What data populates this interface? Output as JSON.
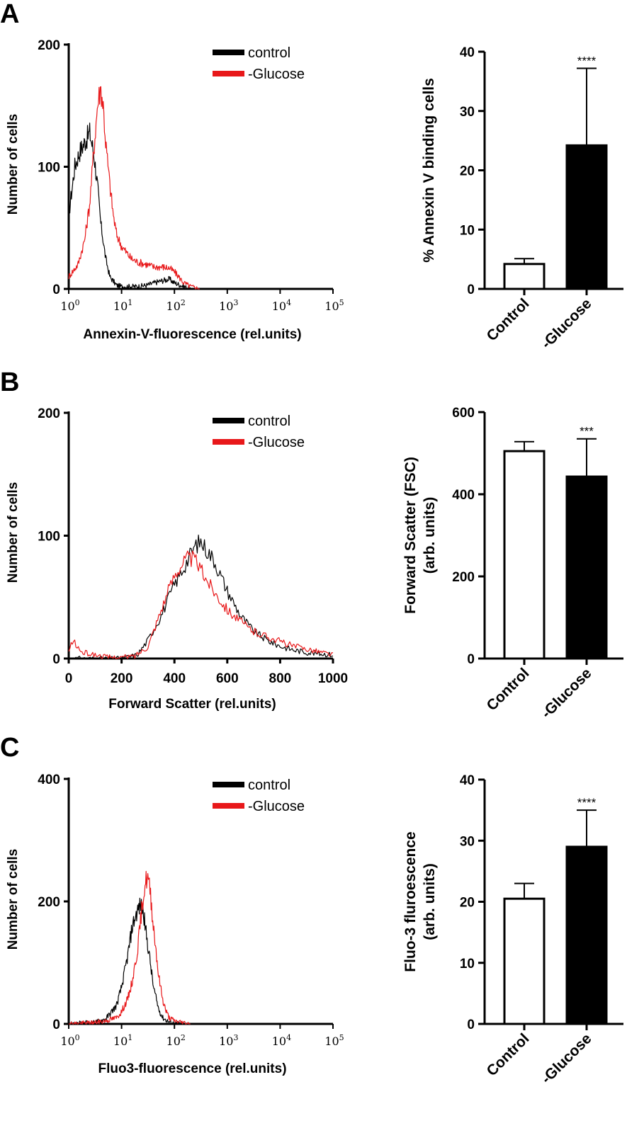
{
  "panels": [
    {
      "letter": "A"
    },
    {
      "letter": "B"
    },
    {
      "letter": "C"
    }
  ],
  "legend": [
    {
      "label": "control",
      "color": "#000000"
    },
    {
      "label": "-Glucose",
      "color": "#e8181a"
    }
  ],
  "chart_data": [
    {
      "type": "line",
      "panel": "A",
      "xlabel": "Annexin-V-fluorescence (rel.units)",
      "ylabel": "Number of cells",
      "xscale": "log",
      "xlim": [
        1,
        100000
      ],
      "ylim": [
        0,
        200
      ],
      "x_tick_labels": [
        {
          "base": "10",
          "exp": "0"
        },
        {
          "base": "10",
          "exp": "1"
        },
        {
          "base": "10",
          "exp": "2"
        },
        {
          "base": "10",
          "exp": "3"
        },
        {
          "base": "10",
          "exp": "4"
        },
        {
          "base": "10",
          "exp": "5"
        }
      ],
      "y_ticks": [
        0,
        100,
        200
      ],
      "series": [
        {
          "name": "control",
          "color": "#000000",
          "x": [
            1,
            1.3,
            1.6,
            2,
            2.5,
            3,
            3.5,
            4,
            5,
            6,
            8,
            10,
            15,
            20,
            30,
            50,
            80,
            100,
            150,
            200
          ],
          "y": [
            60,
            100,
            112,
            120,
            128,
            110,
            85,
            55,
            25,
            10,
            3,
            2,
            2,
            2,
            3,
            6,
            8,
            5,
            2,
            0
          ]
        },
        {
          "name": "-Glucose",
          "color": "#e8181a",
          "x": [
            1,
            1.5,
            2,
            2.5,
            3,
            3.5,
            4,
            4.5,
            5,
            6,
            7,
            8,
            10,
            15,
            20,
            30,
            40,
            60,
            80,
            100,
            120,
            150,
            200,
            300
          ],
          "y": [
            10,
            20,
            40,
            70,
            115,
            150,
            165,
            150,
            120,
            85,
            60,
            45,
            35,
            25,
            22,
            20,
            18,
            18,
            17,
            14,
            10,
            5,
            2,
            0
          ]
        }
      ]
    },
    {
      "type": "bar",
      "panel": "A",
      "categories": [
        "Control",
        "-Glucose"
      ],
      "values": [
        4.2,
        24.2
      ],
      "errors": [
        0.9,
        13
      ],
      "fills": [
        "#ffffff",
        "#000000"
      ],
      "ylabel": "% Annexin V binding cells",
      "ylim": [
        0,
        40
      ],
      "y_ticks": [
        0,
        10,
        20,
        30,
        40
      ],
      "significance": [
        "",
        "****"
      ]
    },
    {
      "type": "line",
      "panel": "B",
      "xlabel": "Forward Scatter (rel.units)",
      "ylabel": "Number of cells",
      "xscale": "linear",
      "xlim": [
        0,
        1000
      ],
      "ylim": [
        0,
        200
      ],
      "x_ticks": [
        0,
        200,
        400,
        600,
        800,
        1000
      ],
      "y_ticks": [
        0,
        100,
        200
      ],
      "series": [
        {
          "name": "control",
          "color": "#000000",
          "x": [
            0,
            200,
            260,
            300,
            350,
            400,
            450,
            480,
            500,
            550,
            600,
            650,
            700,
            750,
            800,
            850,
            900,
            1000
          ],
          "y": [
            0,
            0,
            3,
            15,
            35,
            60,
            80,
            92,
            95,
            80,
            55,
            35,
            22,
            15,
            10,
            7,
            5,
            3
          ]
        },
        {
          "name": "-Glucose",
          "color": "#e8181a",
          "x": [
            0,
            15,
            30,
            50,
            100,
            150,
            200,
            250,
            300,
            350,
            400,
            430,
            450,
            480,
            500,
            550,
            600,
            650,
            700,
            750,
            800,
            850,
            900,
            1000
          ],
          "y": [
            5,
            15,
            10,
            5,
            3,
            1,
            1,
            2,
            10,
            40,
            68,
            78,
            82,
            80,
            72,
            55,
            40,
            30,
            22,
            18,
            14,
            10,
            8,
            3
          ]
        }
      ]
    },
    {
      "type": "bar",
      "panel": "B",
      "categories": [
        "Control",
        "-Glucose"
      ],
      "values": [
        505,
        443
      ],
      "errors": [
        23,
        92
      ],
      "fills": [
        "#ffffff",
        "#000000"
      ],
      "ylabel": "Forward Scatter (FSC)\n(arb. units)",
      "ylabel_lines": [
        "Forward Scatter (FSC)",
        "(arb. units)"
      ],
      "ylim": [
        0,
        600
      ],
      "y_ticks": [
        0,
        200,
        400,
        600
      ],
      "significance": [
        "",
        "***"
      ]
    },
    {
      "type": "line",
      "panel": "C",
      "xlabel": "Fluo3-fluorescence (rel.units)",
      "ylabel": "Number of cells",
      "xscale": "log",
      "xlim": [
        1,
        100000
      ],
      "ylim": [
        0,
        400
      ],
      "x_tick_labels": [
        {
          "base": "10",
          "exp": "0"
        },
        {
          "base": "10",
          "exp": "1"
        },
        {
          "base": "10",
          "exp": "2"
        },
        {
          "base": "10",
          "exp": "3"
        },
        {
          "base": "10",
          "exp": "4"
        },
        {
          "base": "10",
          "exp": "5"
        }
      ],
      "y_ticks": [
        0,
        200,
        400
      ],
      "series": [
        {
          "name": "control",
          "color": "#000000",
          "x": [
            1,
            3,
            5,
            8,
            10,
            13,
            16,
            20,
            23,
            26,
            30,
            35,
            40,
            50,
            60,
            80,
            100,
            150
          ],
          "y": [
            0,
            2,
            8,
            30,
            60,
            110,
            160,
            185,
            195,
            180,
            140,
            100,
            60,
            25,
            10,
            3,
            1,
            0
          ]
        },
        {
          "name": "-Glucose",
          "color": "#e8181a",
          "x": [
            1,
            3,
            5,
            8,
            10,
            13,
            16,
            20,
            25,
            28,
            31,
            35,
            40,
            45,
            50,
            60,
            70,
            80,
            100,
            150,
            200
          ],
          "y": [
            0,
            2,
            5,
            10,
            20,
            40,
            70,
            120,
            200,
            230,
            240,
            215,
            160,
            120,
            80,
            40,
            20,
            10,
            5,
            2,
            0
          ]
        }
      ]
    },
    {
      "type": "bar",
      "panel": "C",
      "categories": [
        "Control",
        "-Glucose"
      ],
      "values": [
        20.5,
        29
      ],
      "errors": [
        2.5,
        6
      ],
      "fills": [
        "#ffffff",
        "#000000"
      ],
      "ylabel": "Fluo-3 fluroescence\n(arb. units)",
      "ylabel_lines": [
        "Fluo-3 fluroescence",
        "(arb. units)"
      ],
      "ylim": [
        0,
        40
      ],
      "y_ticks": [
        0,
        10,
        20,
        30,
        40
      ],
      "significance": [
        "",
        "****"
      ]
    }
  ]
}
